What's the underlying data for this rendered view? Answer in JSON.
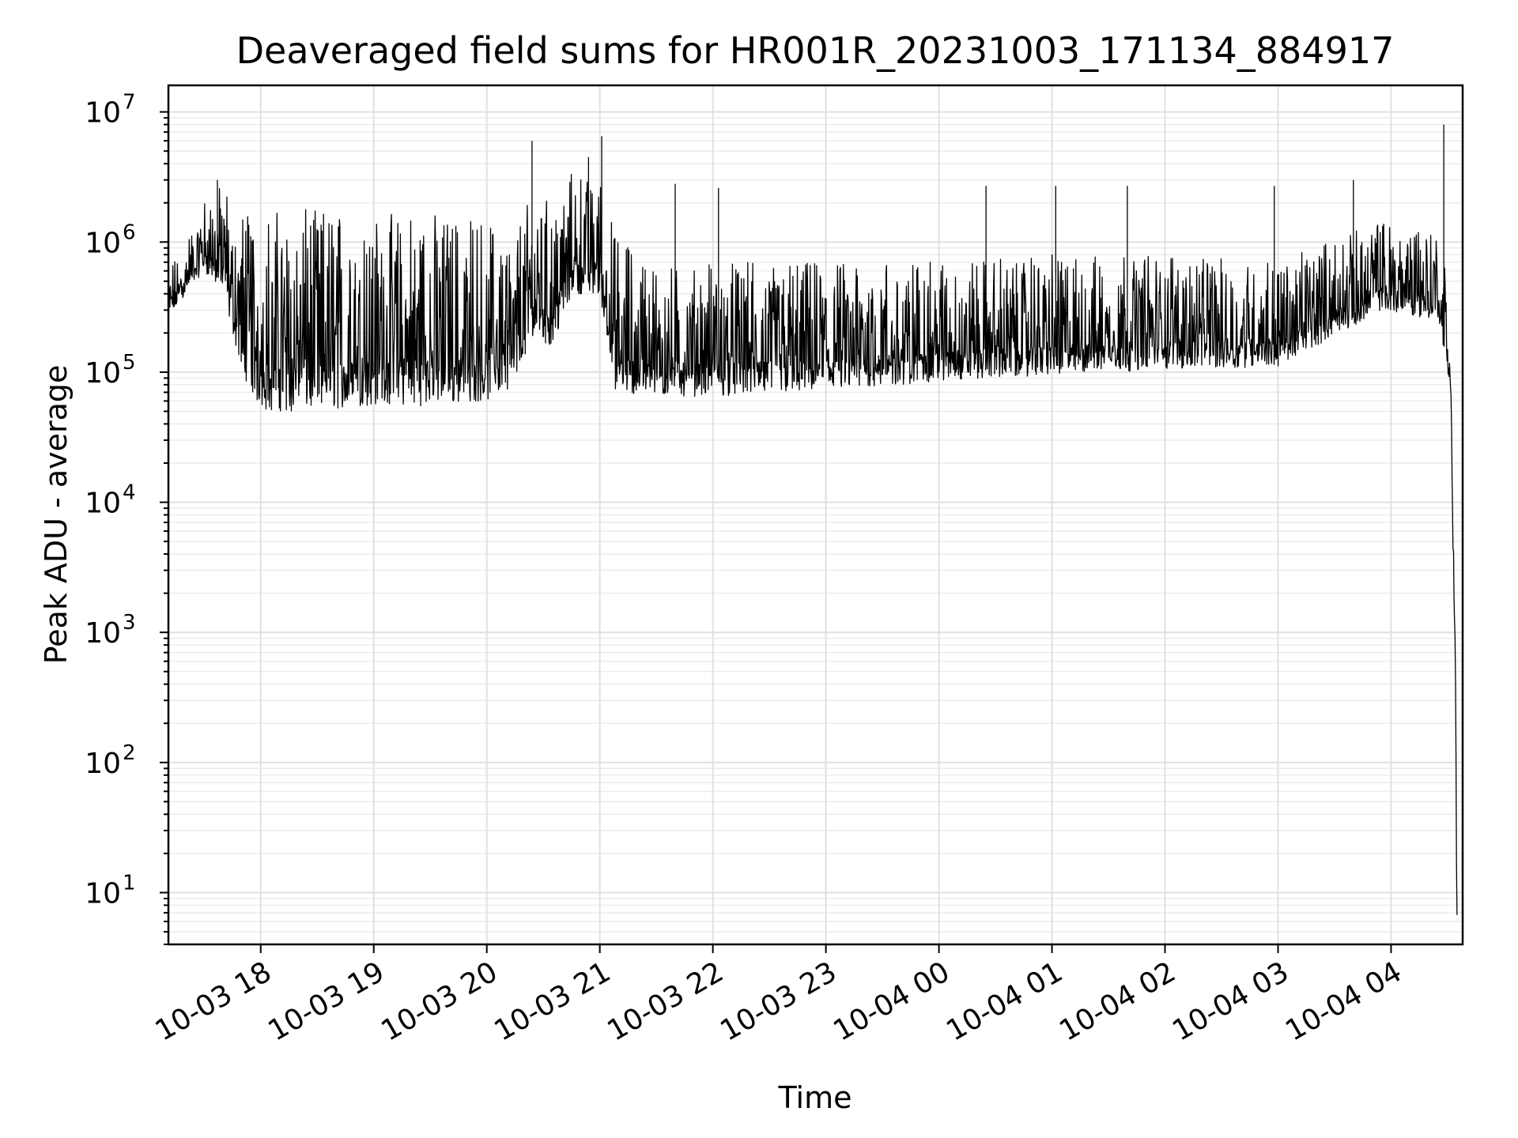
{
  "chart_data": {
    "type": "line",
    "title": "Deaveraged field sums for HR001R_20231003_171134_884917",
    "xlabel": "Time",
    "ylabel": "Peak ADU - average",
    "xscale": "time",
    "yscale": "log",
    "xlim": [
      "2023-10-03 17:11",
      "2023-10-04 04:38"
    ],
    "ylim": [
      4,
      16000000
    ],
    "grid": true,
    "line_color": "#000000",
    "x_ticks": [
      {
        "t": "2023-10-03 18:00",
        "label": "10-03 18"
      },
      {
        "t": "2023-10-03 19:00",
        "label": "10-03 19"
      },
      {
        "t": "2023-10-03 20:00",
        "label": "10-03 20"
      },
      {
        "t": "2023-10-03 21:00",
        "label": "10-03 21"
      },
      {
        "t": "2023-10-03 22:00",
        "label": "10-03 22"
      },
      {
        "t": "2023-10-03 23:00",
        "label": "10-03 23"
      },
      {
        "t": "2023-10-04 00:00",
        "label": "10-04 00"
      },
      {
        "t": "2023-10-04 01:00",
        "label": "10-04 01"
      },
      {
        "t": "2023-10-04 02:00",
        "label": "10-04 02"
      },
      {
        "t": "2023-10-04 03:00",
        "label": "10-04 03"
      },
      {
        "t": "2023-10-04 04:00",
        "label": "10-04 04"
      }
    ],
    "y_ticks": [
      {
        "value": 10,
        "base": "10",
        "exp": "1"
      },
      {
        "value": 100,
        "base": "10",
        "exp": "2"
      },
      {
        "value": 1000,
        "base": "10",
        "exp": "3"
      },
      {
        "value": 10000,
        "base": "10",
        "exp": "4"
      },
      {
        "value": 100000,
        "base": "10",
        "exp": "5"
      },
      {
        "value": 1000000,
        "base": "10",
        "exp": "6"
      },
      {
        "value": 10000000,
        "base": "10",
        "exp": "7"
      }
    ],
    "series": [
      {
        "envelope": [
          {
            "t": "2023-10-03 17:11",
            "low": 250000,
            "high": 600000
          },
          {
            "t": "2023-10-03 17:20",
            "low": 400000,
            "high": 1000000
          },
          {
            "t": "2023-10-03 17:30",
            "low": 600000,
            "high": 2200000
          },
          {
            "t": "2023-10-03 17:40",
            "low": 400000,
            "high": 2800000
          },
          {
            "t": "2023-10-03 17:50",
            "low": 100000,
            "high": 2000000
          },
          {
            "t": "2023-10-03 18:00",
            "low": 50000,
            "high": 1700000
          },
          {
            "t": "2023-10-03 18:30",
            "low": 50000,
            "high": 1800000
          },
          {
            "t": "2023-10-03 19:00",
            "low": 55000,
            "high": 1700000
          },
          {
            "t": "2023-10-03 19:30",
            "low": 55000,
            "high": 1700000
          },
          {
            "t": "2023-10-03 20:00",
            "low": 60000,
            "high": 1500000
          },
          {
            "t": "2023-10-03 20:15",
            "low": 80000,
            "high": 1300000
          },
          {
            "t": "2023-10-03 20:25",
            "low": 200000,
            "high": 3000000
          },
          {
            "t": "2023-10-03 20:35",
            "low": 150000,
            "high": 2000000
          },
          {
            "t": "2023-10-03 20:45",
            "low": 400000,
            "high": 3500000
          },
          {
            "t": "2023-10-03 21:00",
            "low": 400000,
            "high": 3000000
          },
          {
            "t": "2023-10-03 21:08",
            "low": 70000,
            "high": 1200000
          },
          {
            "t": "2023-10-03 21:30",
            "low": 65000,
            "high": 700000
          },
          {
            "t": "2023-10-03 22:00",
            "low": 65000,
            "high": 700000
          },
          {
            "t": "2023-10-03 23:00",
            "low": 70000,
            "high": 700000
          },
          {
            "t": "2023-10-04 00:00",
            "low": 85000,
            "high": 700000
          },
          {
            "t": "2023-10-04 01:00",
            "low": 95000,
            "high": 800000
          },
          {
            "t": "2023-10-04 02:00",
            "low": 105000,
            "high": 800000
          },
          {
            "t": "2023-10-04 03:00",
            "low": 110000,
            "high": 700000
          },
          {
            "t": "2023-10-04 03:55",
            "low": 300000,
            "high": 1500000
          },
          {
            "t": "2023-10-04 04:25",
            "low": 250000,
            "high": 1300000
          },
          {
            "t": "2023-10-04 04:31",
            "low": 80000,
            "high": 400000
          },
          {
            "t": "2023-10-04 04:32",
            "low": 40000,
            "high": 150000
          },
          {
            "t": "2023-10-04 04:33",
            "low": 2500,
            "high": 7000
          },
          {
            "t": "2023-10-04 04:34",
            "low": 800,
            "high": 1500
          },
          {
            "t": "2023-10-04 04:35",
            "low": 4,
            "high": 10
          }
        ],
        "spikes": [
          {
            "t": "2023-10-03 20:24",
            "value": 6000000
          },
          {
            "t": "2023-10-03 21:01",
            "value": 6500000
          },
          {
            "t": "2023-10-03 20:54",
            "value": 4500000
          },
          {
            "t": "2023-10-03 17:37",
            "value": 3000000
          },
          {
            "t": "2023-10-04 04:28",
            "value": 8000000
          },
          {
            "t": "2023-10-04 03:40",
            "value": 3000000
          },
          {
            "t": "2023-10-04 00:25",
            "value": 2700000
          },
          {
            "t": "2023-10-04 01:02",
            "value": 2700000
          },
          {
            "t": "2023-10-04 01:40",
            "value": 2700000
          },
          {
            "t": "2023-10-04 02:58",
            "value": 2700000
          },
          {
            "t": "2023-10-03 21:40",
            "value": 2800000
          },
          {
            "t": "2023-10-03 22:03",
            "value": 2600000
          }
        ]
      }
    ]
  }
}
